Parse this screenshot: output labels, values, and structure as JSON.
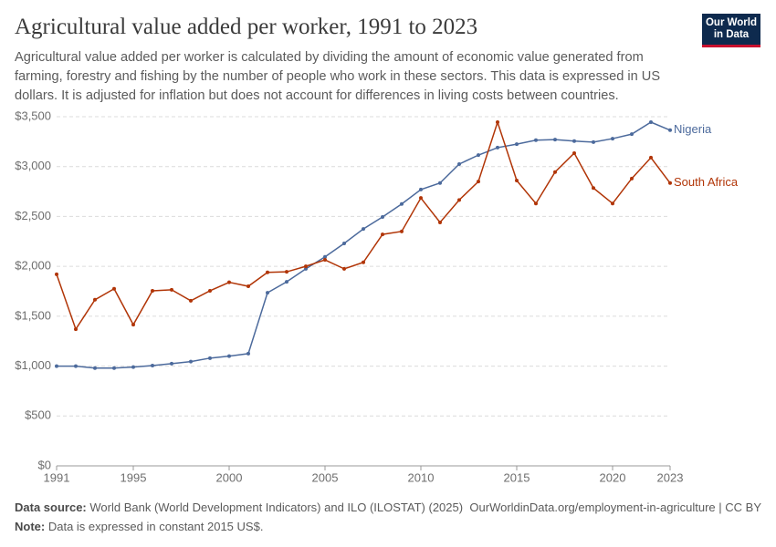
{
  "chart_data": {
    "type": "line",
    "title": "Agricultural value added per worker, 1991 to 2023",
    "subtitle": "Agricultural value added per worker is calculated by dividing the amount of economic value generated from farming, forestry and fishing by the number of people who work in these sectors. This data is expressed in US dollars. It is adjusted for inflation but does not account for differences in living costs between countries.",
    "logo": [
      "Our World",
      "in Data"
    ],
    "x": [
      1991,
      1992,
      1993,
      1994,
      1995,
      1996,
      1997,
      1998,
      1999,
      2000,
      2001,
      2002,
      2003,
      2004,
      2005,
      2006,
      2007,
      2008,
      2009,
      2010,
      2011,
      2012,
      2013,
      2014,
      2015,
      2016,
      2017,
      2018,
      2019,
      2020,
      2021,
      2022,
      2023
    ],
    "series": [
      {
        "name": "Nigeria",
        "color": "#4c6a9c",
        "values": [
          1000,
          1000,
          980,
          980,
          990,
          1005,
          1025,
          1045,
          1080,
          1100,
          1125,
          1735,
          1845,
          1975,
          2095,
          2230,
          2375,
          2495,
          2625,
          2770,
          2835,
          3025,
          3115,
          3190,
          3225,
          3265,
          3270,
          3255,
          3245,
          3280,
          3325,
          3445,
          3365
        ]
      },
      {
        "name": "South Africa",
        "color": "#b13507",
        "values": [
          1920,
          1370,
          1665,
          1775,
          1415,
          1755,
          1765,
          1655,
          1755,
          1840,
          1800,
          1940,
          1945,
          2000,
          2065,
          1975,
          2040,
          2320,
          2350,
          2685,
          2440,
          2665,
          2850,
          3445,
          2860,
          2630,
          2945,
          3135,
          2785,
          2630,
          2880,
          3090,
          2835
        ]
      }
    ],
    "xlim": [
      1991,
      2023
    ],
    "xticks": [
      1991,
      1995,
      2000,
      2005,
      2010,
      2015,
      2020,
      2023
    ],
    "ylim": [
      0,
      3500
    ],
    "yticks": [
      {
        "value": 0,
        "label": "$0"
      },
      {
        "value": 500,
        "label": "$500"
      },
      {
        "value": 1000,
        "label": "$1,000"
      },
      {
        "value": 1500,
        "label": "$1,500"
      },
      {
        "value": 2000,
        "label": "$2,000"
      },
      {
        "value": 2500,
        "label": "$2,500"
      },
      {
        "value": 3000,
        "label": "$3,000"
      },
      {
        "value": 3500,
        "label": "$3,500"
      }
    ],
    "grid": true,
    "source_label": "Data source:",
    "source": "World Bank (World Development Indicators) and ILO (ILOSTAT) (2025)",
    "url": "OurWorldinData.org/employment-in-agriculture | CC BY",
    "note_label": "Note:",
    "note": "Data is expressed in constant 2015 US$."
  }
}
